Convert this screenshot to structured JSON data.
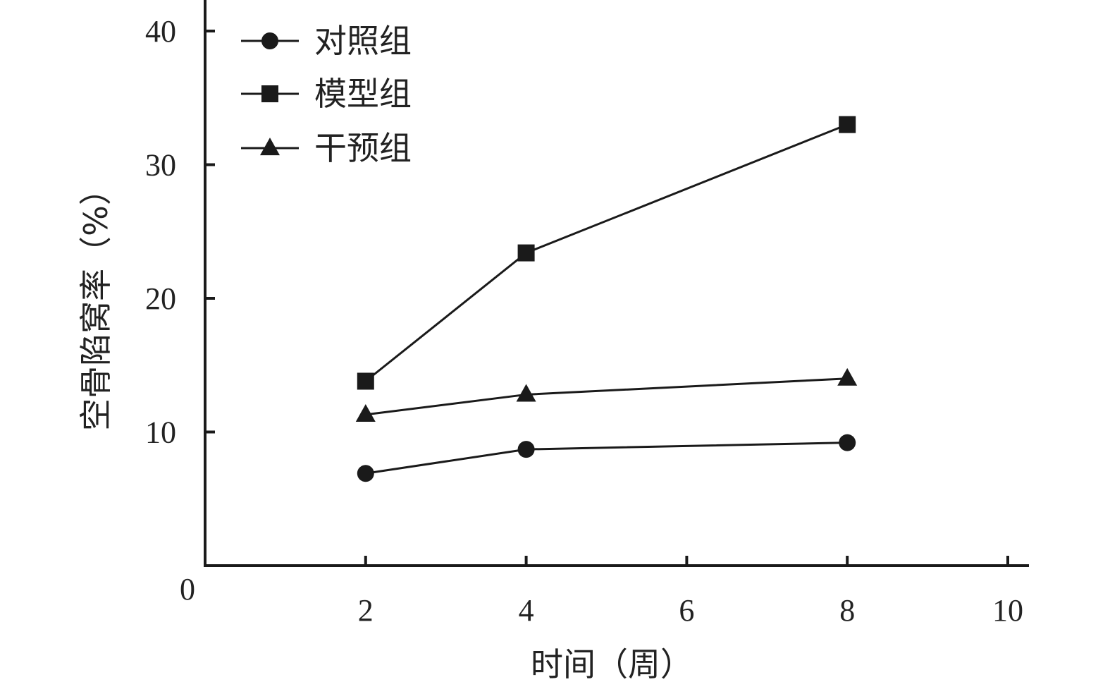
{
  "chart_data": {
    "type": "line",
    "xlabel": "时间（周）",
    "ylabel": "空骨陷窝率（%）",
    "origin_label": "0",
    "xlim": [
      0,
      10
    ],
    "ylim": [
      0,
      40
    ],
    "xticks": [
      2,
      4,
      6,
      8,
      10
    ],
    "yticks": [
      10,
      20,
      30,
      40
    ],
    "grid": false,
    "legend_position": "top-left",
    "series": [
      {
        "name": "对照组",
        "marker": "circle",
        "x": [
          2,
          4,
          8
        ],
        "values": [
          6.9,
          8.7,
          9.2
        ]
      },
      {
        "name": "模型组",
        "marker": "square",
        "x": [
          2,
          4,
          8
        ],
        "values": [
          13.8,
          23.4,
          33.0
        ]
      },
      {
        "name": "干预组",
        "marker": "triangle",
        "x": [
          2,
          4,
          8
        ],
        "values": [
          11.3,
          12.8,
          14.0
        ]
      }
    ]
  }
}
